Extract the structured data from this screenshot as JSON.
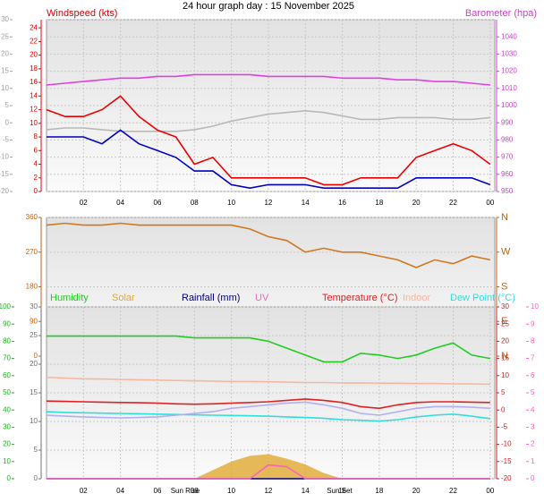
{
  "chart_data": [
    {
      "type": "line",
      "title": "24 hour graph day : 15 November 2025",
      "ylabel": "Windspeed (kts)",
      "y2label": "Barometer (hpa)",
      "xlim": [
        0,
        24.25
      ],
      "xticks": [
        {
          "value": 2,
          "label": "02"
        },
        {
          "value": 4,
          "label": "04"
        },
        {
          "value": 6,
          "label": "06"
        },
        {
          "value": 8,
          "label": "08"
        },
        10,
        12,
        14,
        16,
        18,
        20,
        22,
        {
          "value": 24,
          "label": "00"
        }
      ],
      "grid_axis": "grey",
      "axes": {
        "grey": {
          "lim": [
            -20,
            30
          ],
          "ticks": [
            -20,
            -15,
            -10,
            -5,
            0,
            5,
            10,
            15,
            20,
            25,
            30
          ],
          "color": "#a0a0a0"
        },
        "wind": {
          "lim": [
            0,
            25.2
          ],
          "ticks": [
            0,
            2,
            4,
            6,
            8,
            10,
            12,
            14,
            16,
            18,
            20,
            22,
            24
          ],
          "color": "#dd0000"
        },
        "baro": {
          "lim": [
            950,
            1050
          ],
          "ticks": [
            950,
            960,
            970,
            980,
            990,
            1000,
            1010,
            1020,
            1030,
            1040
          ],
          "color": "#d040d0"
        }
      },
      "x": [
        0,
        1,
        2,
        3,
        4,
        5,
        6,
        7,
        8,
        9,
        10,
        11,
        12,
        13,
        14,
        15,
        16,
        17,
        18,
        19,
        20,
        21,
        22,
        23,
        24
      ],
      "series": [
        {
          "color": "#b8b8b8",
          "axis": "grey",
          "values": [
            -2,
            -1.5,
            -1.5,
            -2,
            -2.5,
            -2.5,
            -2.5,
            -2.5,
            -2,
            -1,
            0.5,
            1.5,
            2.5,
            3,
            3.5,
            3,
            2,
            1,
            1,
            1.5,
            1.5,
            1.5,
            1,
            1,
            1.5
          ]
        },
        {
          "color": "#e040e0",
          "axis": "baro",
          "values": [
            1012,
            1013,
            1014,
            1015,
            1016,
            1016,
            1017,
            1017,
            1018,
            1018,
            1018,
            1018,
            1017,
            1017,
            1017,
            1017,
            1016,
            1016,
            1016,
            1015,
            1015,
            1014,
            1014,
            1013,
            1012
          ]
        },
        {
          "color": "#ee0000",
          "axis": "wind",
          "values": [
            12,
            11,
            11,
            12,
            14,
            11,
            9,
            8,
            4,
            5,
            2,
            2,
            2,
            2,
            2,
            1,
            1,
            2,
            2,
            2,
            5,
            6,
            7,
            6,
            4
          ]
        },
        {
          "color": "#0000c0",
          "axis": "wind",
          "values": [
            8,
            8,
            8,
            7,
            9,
            7,
            6,
            5,
            3,
            3,
            1,
            0.5,
            1,
            1,
            1,
            0.5,
            0.5,
            0.5,
            0.5,
            0.5,
            2,
            2,
            2,
            2,
            1
          ]
        }
      ]
    },
    {
      "type": "line",
      "xlim": [
        0,
        24.25
      ],
      "grid_axis": "dir",
      "axes": {
        "dir": {
          "lim": [
            0,
            360
          ],
          "ticks": [
            0,
            90,
            180,
            270,
            360
          ],
          "color": "#c06010"
        },
        "compass": {
          "lim": [
            0,
            360
          ],
          "ticks": [
            {
              "value": 0,
              "label": "N"
            },
            {
              "value": 90,
              "label": "E"
            },
            {
              "value": 180,
              "label": "S"
            },
            {
              "value": 270,
              "label": "W"
            },
            {
              "value": 360,
              "label": "N"
            }
          ],
          "color": "#c06010"
        }
      },
      "x": [
        0,
        1,
        2,
        3,
        4,
        5,
        6,
        7,
        8,
        9,
        10,
        11,
        12,
        13,
        14,
        15,
        16,
        17,
        18,
        19,
        20,
        21,
        22,
        23,
        24
      ],
      "series": [
        {
          "color": "#d07820",
          "axis": "dir",
          "values": [
            340,
            345,
            340,
            340,
            345,
            340,
            340,
            340,
            340,
            340,
            340,
            330,
            310,
            300,
            270,
            280,
            270,
            270,
            260,
            250,
            230,
            250,
            240,
            260,
            250
          ]
        }
      ]
    },
    {
      "type": "line",
      "xlim": [
        0,
        24.25
      ],
      "xticks": [
        {
          "value": 2,
          "label": "02"
        },
        {
          "value": 4,
          "label": "04"
        },
        {
          "value": 6,
          "label": "06"
        },
        {
          "value": 8,
          "label": "08"
        },
        10,
        12,
        14,
        16,
        18,
        20,
        22,
        {
          "value": 24,
          "label": "00"
        }
      ],
      "grid_axis": "grey",
      "annotations": [
        {
          "text": "Sun Rise",
          "x": 7.5
        },
        {
          "text": "Sun Set",
          "x": 15.85
        }
      ],
      "axes": {
        "hum": {
          "lim": [
            0,
            100
          ],
          "ticks": [
            0,
            10,
            20,
            30,
            40,
            50,
            60,
            70,
            80,
            90,
            100
          ],
          "color": "#20b020"
        },
        "grey": {
          "lim": [
            0,
            30
          ],
          "ticks": [
            0,
            5,
            10,
            15,
            20,
            25,
            30
          ],
          "color": "#707070"
        },
        "temp": {
          "lim": [
            -20,
            30
          ],
          "ticks": [
            -20,
            -15,
            -10,
            -5,
            0,
            5,
            10,
            15,
            20,
            25,
            30
          ],
          "color": "#cc2020"
        },
        "uv": {
          "lim": [
            0,
            10
          ],
          "ticks": [
            0,
            1,
            2,
            3,
            4,
            5,
            6,
            7,
            8,
            9,
            10
          ],
          "color": "#ff60c0"
        }
      },
      "x": [
        0,
        1,
        2,
        3,
        4,
        5,
        6,
        7,
        8,
        9,
        10,
        11,
        12,
        13,
        14,
        15,
        16,
        17,
        18,
        19,
        20,
        21,
        22,
        23,
        24
      ],
      "series": [
        {
          "name": "Humidity",
          "color": "#22cc22",
          "axis": "hum",
          "values": [
            83,
            83,
            83,
            83,
            83,
            83,
            83,
            83,
            82,
            82,
            82,
            82,
            80,
            76,
            72,
            68,
            68,
            73,
            72,
            70,
            72,
            76,
            79,
            72,
            70
          ]
        },
        {
          "name": "Solar",
          "color": "#e0a830",
          "axis": "grey",
          "area": true,
          "values": [
            0,
            0,
            0,
            0,
            0,
            0,
            0,
            0,
            0,
            1.5,
            3,
            4,
            4.3,
            3.5,
            2.5,
            1,
            0,
            0,
            0,
            0,
            0,
            0,
            0,
            0,
            0
          ]
        },
        {
          "name": "Rainfall (mm)",
          "color": "#000080",
          "axis": "grey",
          "values": [
            0,
            0,
            0,
            0,
            0,
            0,
            0,
            0,
            0,
            0,
            0,
            0,
            0,
            0,
            0,
            0,
            0,
            0,
            0,
            0,
            0,
            0,
            0,
            0,
            0
          ]
        },
        {
          "name": "UV",
          "color": "#ff60c0",
          "axis": "uv",
          "values": [
            0,
            0,
            0,
            0,
            0,
            0,
            0,
            0,
            0,
            0,
            0,
            0,
            0.8,
            0.7,
            0,
            0,
            0,
            0,
            0,
            0,
            0,
            0,
            0,
            0,
            0
          ]
        },
        {
          "name": "Temperature (°C)",
          "color": "#e02020",
          "axis": "temp",
          "values": [
            2.6,
            2.5,
            2.4,
            2.3,
            2.2,
            2.1,
            2.0,
            1.8,
            1.7,
            1.8,
            2.0,
            2.2,
            2.4,
            2.8,
            3.2,
            2.8,
            2.2,
            1.0,
            0.5,
            1.5,
            2.2,
            2.4,
            2.4,
            2.3,
            2.2
          ]
        },
        {
          "name": "Indoor",
          "color": "#f4b8a0",
          "axis": "temp",
          "values": [
            9.5,
            9.3,
            9.1,
            9.0,
            8.9,
            8.8,
            8.7,
            8.6,
            8.5,
            8.4,
            8.3,
            8.3,
            8.2,
            8.1,
            8.0,
            8.0,
            7.9,
            7.9,
            7.8,
            7.8,
            7.7,
            7.7,
            7.6,
            7.6,
            7.5
          ]
        },
        {
          "name": "Dew Point (°C)",
          "color": "#30dede",
          "axis": "temp",
          "values": [
            -0.5,
            -0.7,
            -0.8,
            -0.9,
            -1.0,
            -1.1,
            -1.2,
            -1.3,
            -1.4,
            -1.5,
            -1.6,
            -1.7,
            -1.8,
            -2.0,
            -2.2,
            -2.4,
            -2.8,
            -3.0,
            -3.2,
            -2.8,
            -2.0,
            -1.5,
            -1.2,
            -1.8,
            -2.5
          ]
        },
        {
          "color": "#b0b0f0",
          "axis": "temp",
          "values": [
            -1.5,
            -1.8,
            -2.0,
            -2.2,
            -2.3,
            -2.2,
            -2.0,
            -1.5,
            -1.0,
            -0.5,
            0.5,
            1.0,
            1.5,
            2.0,
            2.3,
            1.5,
            0.5,
            -1.0,
            -1.5,
            -0.5,
            0.5,
            1.0,
            1.0,
            0.8,
            0.5
          ]
        }
      ]
    }
  ]
}
